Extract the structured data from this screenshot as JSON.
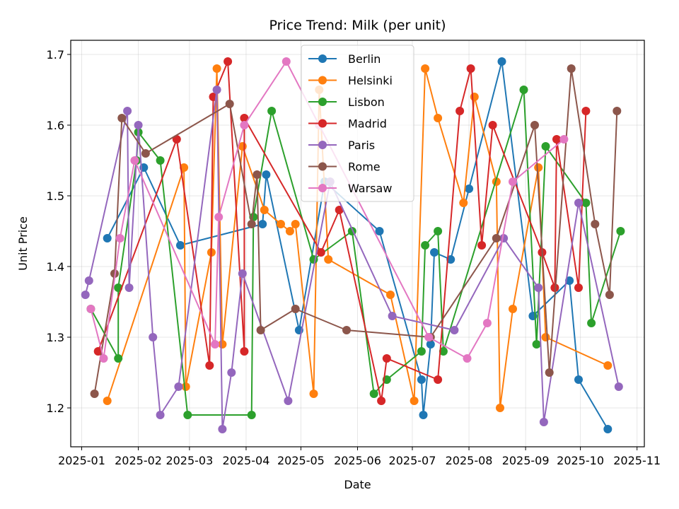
{
  "chart_data": {
    "type": "line",
    "title": "Price Trend: Milk (per unit)",
    "xlabel": "Date",
    "ylabel": "Unit Price",
    "x_axis": "date",
    "xlim": [
      "2024-12-26",
      "2025-11-05"
    ],
    "ylim": [
      1.145,
      1.72
    ],
    "x_ticks": [
      "2025-01-01",
      "2025-02-01",
      "2025-03-01",
      "2025-04-01",
      "2025-05-01",
      "2025-06-01",
      "2025-07-01",
      "2025-08-01",
      "2025-09-01",
      "2025-10-01",
      "2025-11-01"
    ],
    "x_tick_labels": [
      "2025-01",
      "2025-02",
      "2025-03",
      "2025-04",
      "2025-05",
      "2025-06",
      "2025-07",
      "2025-08",
      "2025-09",
      "2025-10",
      "2025-11"
    ],
    "y_ticks": [
      1.2,
      1.3,
      1.4,
      1.5,
      1.6,
      1.7
    ],
    "y_tick_labels": [
      "1.2",
      "1.3",
      "1.4",
      "1.5",
      "1.6",
      "1.7"
    ],
    "grid": true,
    "legend_position": "top-center",
    "series": [
      {
        "name": "Berlin",
        "color": "#1f77b4",
        "points": [
          [
            "2025-01-15",
            1.44
          ],
          [
            "2025-02-04",
            1.54
          ],
          [
            "2025-02-24",
            1.43
          ],
          [
            "2025-04-10",
            1.46
          ],
          [
            "2025-04-12",
            1.53
          ],
          [
            "2025-04-30",
            1.31
          ],
          [
            "2025-05-14",
            1.52
          ],
          [
            "2025-06-13",
            1.45
          ],
          [
            "2025-07-06",
            1.24
          ],
          [
            "2025-07-07",
            1.19
          ],
          [
            "2025-07-11",
            1.29
          ],
          [
            "2025-07-13",
            1.42
          ],
          [
            "2025-07-22",
            1.41
          ],
          [
            "2025-08-01",
            1.51
          ],
          [
            "2025-08-19",
            1.69
          ],
          [
            "2025-09-05",
            1.33
          ],
          [
            "2025-09-25",
            1.38
          ],
          [
            "2025-09-30",
            1.24
          ],
          [
            "2025-10-16",
            1.17
          ]
        ]
      },
      {
        "name": "Helsinki",
        "color": "#ff7f0e",
        "points": [
          [
            "2025-01-15",
            1.21
          ],
          [
            "2025-02-26",
            1.54
          ],
          [
            "2025-02-27",
            1.23
          ],
          [
            "2025-03-13",
            1.42
          ],
          [
            "2025-03-16",
            1.68
          ],
          [
            "2025-03-19",
            1.29
          ],
          [
            "2025-03-30",
            1.57
          ],
          [
            "2025-04-11",
            1.48
          ],
          [
            "2025-04-20",
            1.46
          ],
          [
            "2025-04-25",
            1.45
          ],
          [
            "2025-04-28",
            1.46
          ],
          [
            "2025-05-08",
            1.22
          ],
          [
            "2025-05-11",
            1.65
          ],
          [
            "2025-05-16",
            1.41
          ],
          [
            "2025-06-19",
            1.36
          ],
          [
            "2025-07-02",
            1.21
          ],
          [
            "2025-07-08",
            1.68
          ],
          [
            "2025-07-15",
            1.61
          ],
          [
            "2025-07-29",
            1.49
          ],
          [
            "2025-08-04",
            1.64
          ],
          [
            "2025-08-16",
            1.52
          ],
          [
            "2025-08-18",
            1.2
          ],
          [
            "2025-08-25",
            1.34
          ],
          [
            "2025-09-08",
            1.54
          ],
          [
            "2025-09-12",
            1.3
          ],
          [
            "2025-10-16",
            1.26
          ]
        ]
      },
      {
        "name": "Lisbon",
        "color": "#2ca02c",
        "points": [
          [
            "2025-01-06",
            1.34
          ],
          [
            "2025-01-21",
            1.27
          ],
          [
            "2025-01-21",
            1.37
          ],
          [
            "2025-01-31",
            1.55
          ],
          [
            "2025-02-01",
            1.59
          ],
          [
            "2025-02-13",
            1.55
          ],
          [
            "2025-02-28",
            1.19
          ],
          [
            "2025-04-04",
            1.19
          ],
          [
            "2025-04-05",
            1.47
          ],
          [
            "2025-04-15",
            1.62
          ],
          [
            "2025-05-08",
            1.41
          ],
          [
            "2025-05-29",
            1.45
          ],
          [
            "2025-06-10",
            1.22
          ],
          [
            "2025-06-17",
            1.24
          ],
          [
            "2025-07-06",
            1.28
          ],
          [
            "2025-07-08",
            1.43
          ],
          [
            "2025-07-15",
            1.45
          ],
          [
            "2025-07-18",
            1.28
          ],
          [
            "2025-08-31",
            1.65
          ],
          [
            "2025-09-07",
            1.29
          ],
          [
            "2025-09-12",
            1.57
          ],
          [
            "2025-10-04",
            1.49
          ],
          [
            "2025-10-07",
            1.32
          ],
          [
            "2025-10-23",
            1.45
          ]
        ]
      },
      {
        "name": "Madrid",
        "color": "#d62728",
        "points": [
          [
            "2025-01-10",
            1.28
          ],
          [
            "2025-02-22",
            1.58
          ],
          [
            "2025-03-12",
            1.26
          ],
          [
            "2025-03-14",
            1.64
          ],
          [
            "2025-03-22",
            1.69
          ],
          [
            "2025-03-31",
            1.28
          ],
          [
            "2025-03-31",
            1.61
          ],
          [
            "2025-05-12",
            1.42
          ],
          [
            "2025-05-22",
            1.48
          ],
          [
            "2025-06-14",
            1.21
          ],
          [
            "2025-06-17",
            1.27
          ],
          [
            "2025-07-15",
            1.24
          ],
          [
            "2025-07-27",
            1.62
          ],
          [
            "2025-08-02",
            1.68
          ],
          [
            "2025-08-08",
            1.43
          ],
          [
            "2025-08-14",
            1.6
          ],
          [
            "2025-09-10",
            1.42
          ],
          [
            "2025-09-17",
            1.37
          ],
          [
            "2025-09-18",
            1.58
          ],
          [
            "2025-09-30",
            1.37
          ],
          [
            "2025-10-04",
            1.62
          ]
        ]
      },
      {
        "name": "Paris",
        "color": "#9467bd",
        "points": [
          [
            "2025-01-03",
            1.36
          ],
          [
            "2025-01-05",
            1.38
          ],
          [
            "2025-01-26",
            1.62
          ],
          [
            "2025-01-27",
            1.37
          ],
          [
            "2025-02-01",
            1.6
          ],
          [
            "2025-02-09",
            1.3
          ],
          [
            "2025-02-13",
            1.19
          ],
          [
            "2025-02-23",
            1.23
          ],
          [
            "2025-03-16",
            1.65
          ],
          [
            "2025-03-19",
            1.17
          ],
          [
            "2025-03-24",
            1.25
          ],
          [
            "2025-03-30",
            1.39
          ],
          [
            "2025-04-24",
            1.21
          ],
          [
            "2025-05-17",
            1.52
          ],
          [
            "2025-06-20",
            1.33
          ],
          [
            "2025-07-24",
            1.31
          ],
          [
            "2025-08-20",
            1.44
          ],
          [
            "2025-09-08",
            1.37
          ],
          [
            "2025-09-11",
            1.18
          ],
          [
            "2025-09-30",
            1.49
          ],
          [
            "2025-10-22",
            1.23
          ]
        ]
      },
      {
        "name": "Rome",
        "color": "#8c564b",
        "points": [
          [
            "2025-01-08",
            1.22
          ],
          [
            "2025-01-19",
            1.39
          ],
          [
            "2025-01-23",
            1.61
          ],
          [
            "2025-02-05",
            1.56
          ],
          [
            "2025-03-23",
            1.63
          ],
          [
            "2025-04-04",
            1.46
          ],
          [
            "2025-04-07",
            1.53
          ],
          [
            "2025-04-09",
            1.31
          ],
          [
            "2025-04-28",
            1.34
          ],
          [
            "2025-05-26",
            1.31
          ],
          [
            "2025-07-11",
            1.3
          ],
          [
            "2025-08-16",
            1.44
          ],
          [
            "2025-09-06",
            1.6
          ],
          [
            "2025-09-14",
            1.25
          ],
          [
            "2025-09-26",
            1.68
          ],
          [
            "2025-10-09",
            1.46
          ],
          [
            "2025-10-17",
            1.36
          ],
          [
            "2025-10-21",
            1.62
          ]
        ]
      },
      {
        "name": "Warsaw",
        "color": "#e377c2",
        "points": [
          [
            "2025-01-06",
            1.34
          ],
          [
            "2025-01-13",
            1.27
          ],
          [
            "2025-01-22",
            1.44
          ],
          [
            "2025-01-30",
            1.55
          ],
          [
            "2025-03-15",
            1.29
          ],
          [
            "2025-03-17",
            1.47
          ],
          [
            "2025-03-31",
            1.6
          ],
          [
            "2025-04-23",
            1.69
          ],
          [
            "2025-05-11",
            1.6
          ],
          [
            "2025-07-10",
            1.3
          ],
          [
            "2025-07-31",
            1.27
          ],
          [
            "2025-08-11",
            1.32
          ],
          [
            "2025-08-25",
            1.52
          ],
          [
            "2025-09-22",
            1.58
          ]
        ]
      }
    ]
  }
}
